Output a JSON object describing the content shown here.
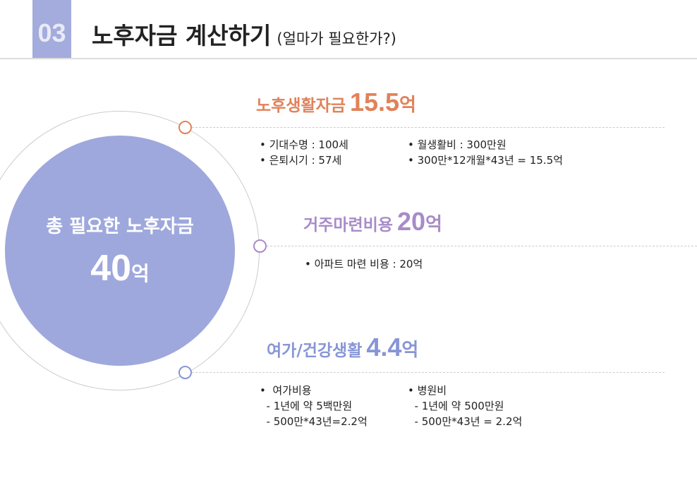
{
  "header": {
    "number": "03",
    "title": "노후자금 계산하기",
    "subtitle": "(얼마가 필요한가?)"
  },
  "center": {
    "label": "총 필요한 노후자금",
    "value": "40",
    "unit": "억"
  },
  "colors": {
    "orange": "#E0825A",
    "purple": "#A88BC8",
    "blue": "#8795D6",
    "circle": "#9EA8DC"
  },
  "sections": [
    {
      "title": "노후생활자금",
      "value": "15.5",
      "unit": "억",
      "left": [
        "• 기대수명 : 100세",
        "• 은퇴시기 : 57세"
      ],
      "right": [
        "• 월생활비 : 300만원",
        "• 300만*12개월*43년 = 15.5억"
      ]
    },
    {
      "title": "거주마련비용",
      "value": "20",
      "unit": "억",
      "left": [
        "• 아파트 마련 비용 : 20억"
      ]
    },
    {
      "title": "여가/건강생활",
      "value": "4.4",
      "unit": "억",
      "left": [
        "•  여가비용",
        "  - 1년에 약 5백만원",
        "  - 500만*43년=2.2억"
      ],
      "right": [
        "• 병원비",
        "  - 1년에 약 500만원",
        "  - 500만*43년 = 2.2억"
      ]
    }
  ]
}
